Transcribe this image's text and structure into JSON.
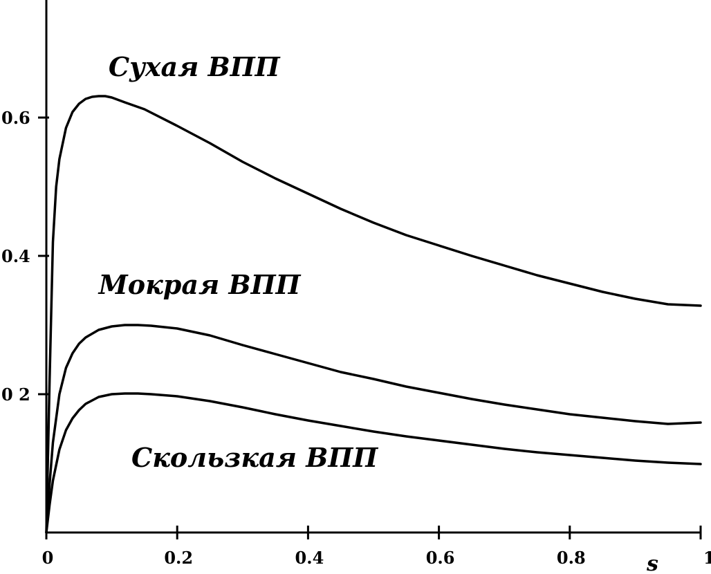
{
  "chart_data": {
    "type": "line",
    "title": "",
    "xlabel": "s",
    "ylabel": "",
    "xlim": [
      0,
      1
    ],
    "ylim": [
      0,
      0.75
    ],
    "grid": false,
    "x_ticks": [
      {
        "value": 0,
        "label": "0"
      },
      {
        "value": 0.2,
        "label": "0.2"
      },
      {
        "value": 0.4,
        "label": "0.4"
      },
      {
        "value": 0.6,
        "label": "0.6"
      },
      {
        "value": 0.8,
        "label": "0.8"
      },
      {
        "value": 1,
        "label": "1"
      }
    ],
    "y_ticks": [
      {
        "value": 0.2,
        "label": "0 2"
      },
      {
        "value": 0.4,
        "label": "0.4"
      },
      {
        "value": 0.6,
        "label": "0.6"
      }
    ],
    "series": [
      {
        "name": "Сухая ВПП",
        "label_at": [
          0.095,
          0.66
        ],
        "x": [
          0,
          0.005,
          0.01,
          0.015,
          0.02,
          0.03,
          0.04,
          0.05,
          0.06,
          0.07,
          0.08,
          0.09,
          0.1,
          0.12,
          0.15,
          0.2,
          0.25,
          0.3,
          0.35,
          0.4,
          0.45,
          0.5,
          0.55,
          0.6,
          0.65,
          0.7,
          0.75,
          0.8,
          0.85,
          0.9,
          0.95,
          1.0
        ],
        "y": [
          0,
          0.22,
          0.42,
          0.5,
          0.54,
          0.585,
          0.608,
          0.62,
          0.627,
          0.63,
          0.631,
          0.631,
          0.629,
          0.622,
          0.612,
          0.588,
          0.563,
          0.536,
          0.512,
          0.49,
          0.468,
          0.448,
          0.43,
          0.415,
          0.4,
          0.386,
          0.372,
          0.36,
          0.348,
          0.338,
          0.33,
          0.328
        ]
      },
      {
        "name": "Мокрая ВПП",
        "label_at": [
          0.08,
          0.345
        ],
        "x": [
          0,
          0.005,
          0.01,
          0.02,
          0.03,
          0.04,
          0.05,
          0.06,
          0.08,
          0.1,
          0.12,
          0.14,
          0.16,
          0.2,
          0.25,
          0.3,
          0.35,
          0.4,
          0.45,
          0.5,
          0.55,
          0.6,
          0.65,
          0.7,
          0.75,
          0.8,
          0.85,
          0.9,
          0.95,
          1.0
        ],
        "y": [
          0,
          0.07,
          0.13,
          0.2,
          0.238,
          0.259,
          0.273,
          0.282,
          0.293,
          0.298,
          0.3,
          0.3,
          0.299,
          0.295,
          0.285,
          0.271,
          0.258,
          0.245,
          0.232,
          0.222,
          0.211,
          0.202,
          0.193,
          0.185,
          0.178,
          0.171,
          0.166,
          0.161,
          0.157,
          0.159
        ]
      },
      {
        "name": "Скользкая ВПП",
        "label_at": [
          0.13,
          0.095
        ],
        "x": [
          0,
          0.005,
          0.01,
          0.02,
          0.03,
          0.04,
          0.05,
          0.06,
          0.08,
          0.1,
          0.12,
          0.14,
          0.16,
          0.2,
          0.25,
          0.3,
          0.35,
          0.4,
          0.45,
          0.5,
          0.55,
          0.6,
          0.65,
          0.7,
          0.75,
          0.8,
          0.85,
          0.9,
          0.95,
          1.0
        ],
        "y": [
          0,
          0.04,
          0.075,
          0.12,
          0.148,
          0.165,
          0.177,
          0.186,
          0.196,
          0.2,
          0.201,
          0.201,
          0.2,
          0.197,
          0.19,
          0.181,
          0.171,
          0.162,
          0.154,
          0.146,
          0.139,
          0.133,
          0.127,
          0.121,
          0.116,
          0.112,
          0.108,
          0.104,
          0.101,
          0.099
        ]
      }
    ]
  }
}
